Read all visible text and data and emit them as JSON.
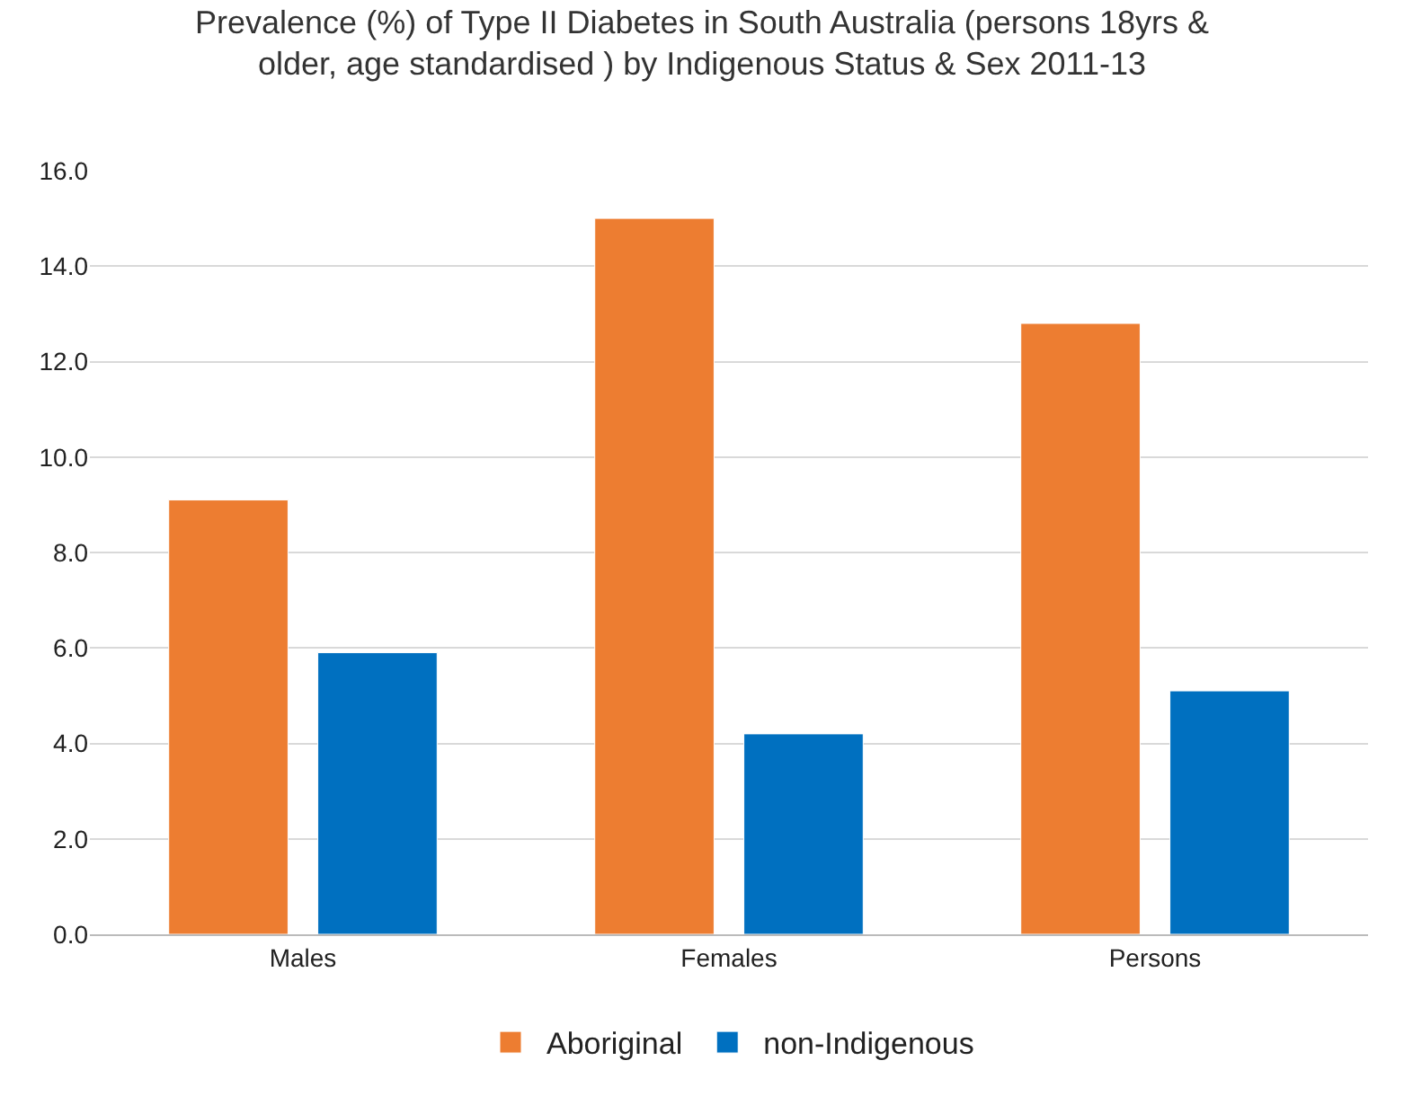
{
  "chart_data": {
    "type": "bar",
    "title": "Prevalence (%) of Type II Diabetes in South Australia (persons 18yrs &\nolder, age standardised ) by Indigenous Status & Sex 2011-13",
    "categories": [
      "Males",
      "Females",
      "Persons"
    ],
    "series": [
      {
        "name": "Aboriginal",
        "color": "#ed7d31",
        "values": [
          9.1,
          15.0,
          12.8
        ]
      },
      {
        "name": "non-Indigenous",
        "color": "#0070c0",
        "values": [
          5.9,
          4.2,
          5.1
        ]
      }
    ],
    "ylim": [
      0,
      16
    ],
    "yticks": [
      {
        "value": 0,
        "label": "0.0"
      },
      {
        "value": 2,
        "label": "2.0"
      },
      {
        "value": 4,
        "label": "4.0"
      },
      {
        "value": 6,
        "label": "6.0"
      },
      {
        "value": 8,
        "label": "8.0"
      },
      {
        "value": 10,
        "label": "10.0"
      },
      {
        "value": 12,
        "label": "12.0"
      },
      {
        "value": 14,
        "label": "14.0"
      },
      {
        "value": 16,
        "label": "16.0"
      }
    ],
    "grid": "y",
    "legend": "bottom"
  }
}
